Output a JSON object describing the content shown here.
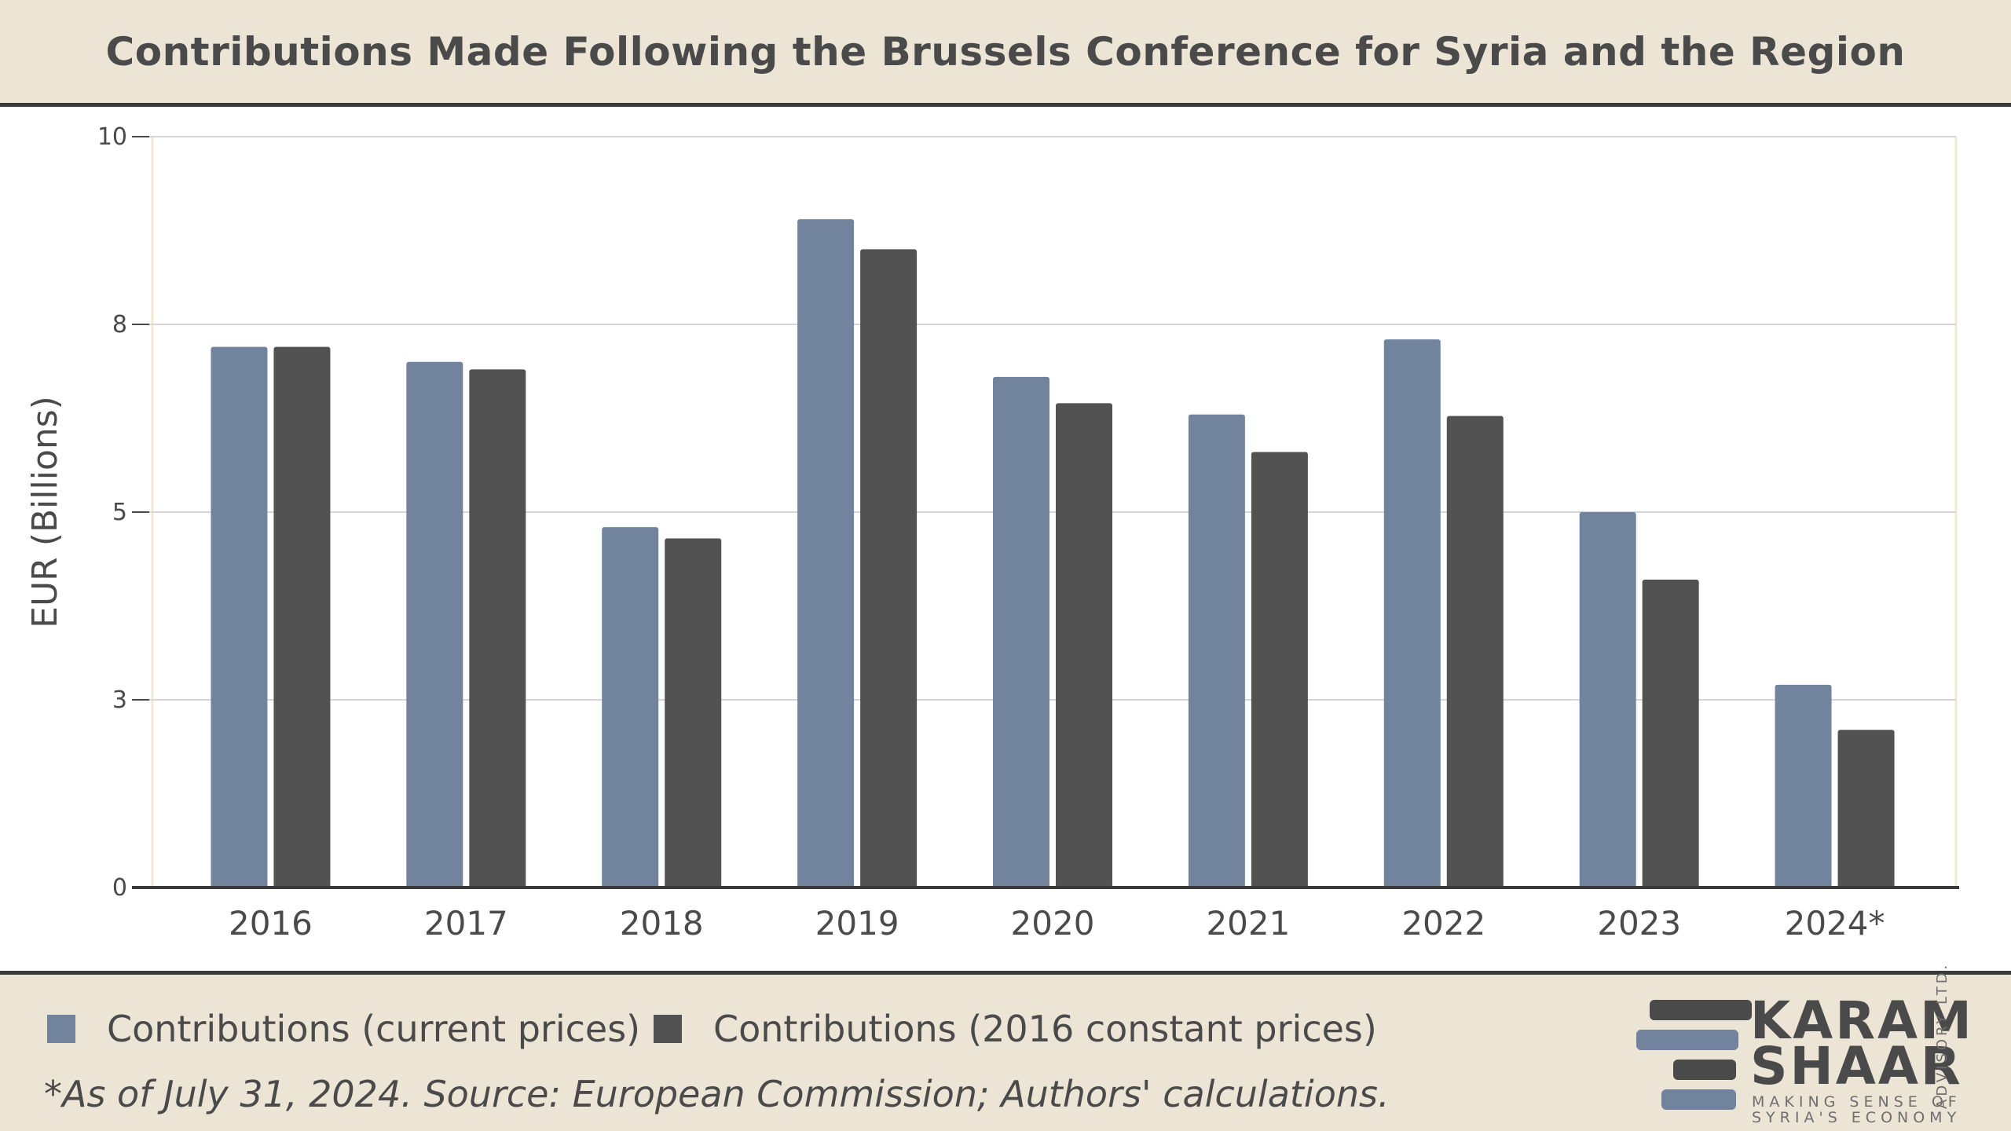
{
  "header": {
    "title": "Contributions Made Following the Brussels Conference for Syria and the Region"
  },
  "legend": {
    "items": [
      {
        "label": "Contributions (current prices)",
        "color": "#72849d"
      },
      {
        "label": "Contributions (2016 constant prices)",
        "color": "#525252"
      }
    ]
  },
  "footnote": "*As of July 31, 2024. Source: European Commission; Authors' calculations.",
  "logo": {
    "word1": "KARAM",
    "word2": "SHAAR",
    "tagline1": "MAKING SENSE OF",
    "tagline2": "SYRIA'S ECONOMY",
    "vertical": "ADVISORY LTD.",
    "bar_colors": [
      "#4a4a4a",
      "#72849d"
    ]
  },
  "chart_data": {
    "type": "bar",
    "title": "Contributions Made Following the Brussels Conference for Syria and the Region",
    "xlabel": "",
    "ylabel": "EUR (Billions)",
    "ylim": [
      0,
      10
    ],
    "yticks": [
      0,
      2.5,
      5,
      7.5,
      10
    ],
    "ytick_labels": [
      "0",
      "3",
      "5",
      "8",
      "10"
    ],
    "grid": true,
    "categories": [
      "2016",
      "2017",
      "2018",
      "2019",
      "2020",
      "2021",
      "2022",
      "2023",
      "2024*"
    ],
    "series": [
      {
        "name": "Contributions (current prices)",
        "color": "#72849d",
        "values": [
          7.2,
          7.0,
          4.8,
          8.9,
          6.8,
          6.3,
          7.3,
          5.0,
          2.7
        ]
      },
      {
        "name": "Contributions (2016 constant prices)",
        "color": "#525252",
        "values": [
          7.2,
          6.9,
          4.65,
          8.5,
          6.45,
          5.8,
          6.28,
          4.1,
          2.1
        ]
      }
    ]
  }
}
